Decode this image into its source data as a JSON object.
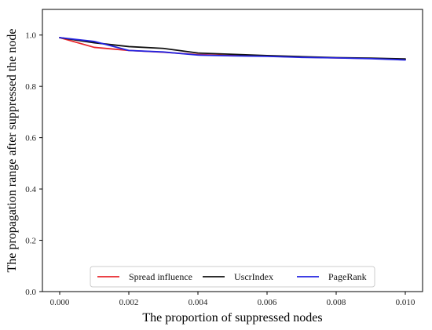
{
  "chart_data": {
    "type": "line",
    "title": "",
    "xlabel": "The proportion of suppressed nodes",
    "ylabel": "The propagation range after suppressed the node",
    "xlim": [
      -0.0005,
      0.0105
    ],
    "ylim": [
      0.0,
      1.1
    ],
    "xticks": [
      0.0,
      0.002,
      0.004,
      0.006,
      0.008,
      0.01
    ],
    "xtick_labels": [
      "0.000",
      "0.002",
      "0.004",
      "0.006",
      "0.008",
      "0.010"
    ],
    "yticks": [
      0.0,
      0.2,
      0.4,
      0.6,
      0.8,
      1.0
    ],
    "ytick_labels": [
      "0.0",
      "0.2",
      "0.4",
      "0.6",
      "0.8",
      "1.0"
    ],
    "grid": false,
    "legend_position": "bottom-center",
    "x": [
      0.0,
      0.001,
      0.002,
      0.003,
      0.004,
      0.005,
      0.006,
      0.007,
      0.008,
      0.009,
      0.01
    ],
    "series": [
      {
        "name": "Spread influence",
        "color": "#e8262b",
        "values": [
          0.99,
          0.952,
          0.94,
          0.933,
          0.924,
          0.92,
          0.918,
          0.914,
          0.911,
          0.909,
          0.906
        ]
      },
      {
        "name": "UscrIndex",
        "color": "#111111",
        "values": [
          0.99,
          0.97,
          0.955,
          0.948,
          0.93,
          0.925,
          0.92,
          0.916,
          0.912,
          0.91,
          0.907
        ]
      },
      {
        "name": "PageRank",
        "color": "#2323e0",
        "values": [
          0.99,
          0.975,
          0.94,
          0.934,
          0.922,
          0.919,
          0.917,
          0.913,
          0.911,
          0.908,
          0.903
        ]
      }
    ]
  }
}
